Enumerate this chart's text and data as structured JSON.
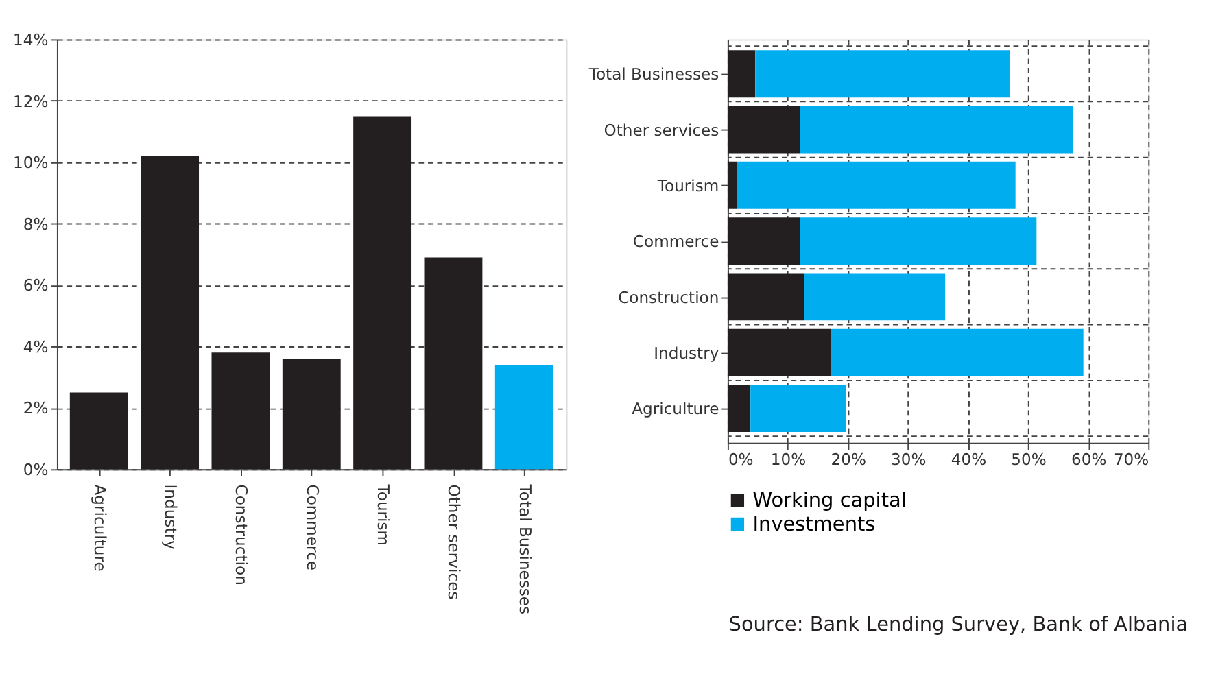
{
  "chart_data": [
    {
      "type": "bar",
      "categories": [
        "Agriculture",
        "Industry",
        "Construction",
        "Commerce",
        "Tourism",
        "Other services",
        "Total Businesses"
      ],
      "values": [
        2.5,
        10.2,
        3.8,
        3.6,
        11.5,
        6.9,
        3.4
      ],
      "colors": [
        "#231f20",
        "#231f20",
        "#231f20",
        "#231f20",
        "#231f20",
        "#231f20",
        "#00aeef"
      ],
      "ylim": [
        0,
        14
      ],
      "yticks": [
        {
          "value": 0,
          "label": "0%"
        },
        {
          "value": 2,
          "label": "2%"
        },
        {
          "value": 4,
          "label": "4%"
        },
        {
          "value": 6,
          "label": "6%"
        },
        {
          "value": 8,
          "label": "8%"
        },
        {
          "value": 10,
          "label": "10%"
        },
        {
          "value": 12,
          "label": "12%"
        },
        {
          "value": 14,
          "label": "14%"
        }
      ],
      "grid": true
    },
    {
      "type": "bar",
      "orientation": "horizontal",
      "stacked": true,
      "categories": [
        "Total Businesses",
        "Other services",
        "Tourism",
        "Commerce",
        "Construction",
        "Industry",
        "Agriculture"
      ],
      "series": [
        {
          "name": "Working capital",
          "color": "#231f20",
          "values": [
            4.6,
            12.0,
            1.6,
            12.0,
            12.7,
            17.2,
            3.8
          ]
        },
        {
          "name": "Investments",
          "color": "#00aeef",
          "values": [
            42.4,
            45.5,
            46.3,
            39.4,
            23.5,
            42.0,
            15.9
          ]
        }
      ],
      "xlim": [
        0,
        70
      ],
      "xticks": [
        {
          "value": 0,
          "label": "0%"
        },
        {
          "value": 10,
          "label": "10%"
        },
        {
          "value": 20,
          "label": "20%"
        },
        {
          "value": 30,
          "label": "30%"
        },
        {
          "value": 40,
          "label": "40%"
        },
        {
          "value": 50,
          "label": "50%"
        },
        {
          "value": 60,
          "label": "60%"
        },
        {
          "value": 70,
          "label": "70%"
        }
      ],
      "grid": true,
      "legend": "bottom",
      "annotations": [
        "Source: Bank Lending Survey, Bank of Albania"
      ]
    }
  ]
}
